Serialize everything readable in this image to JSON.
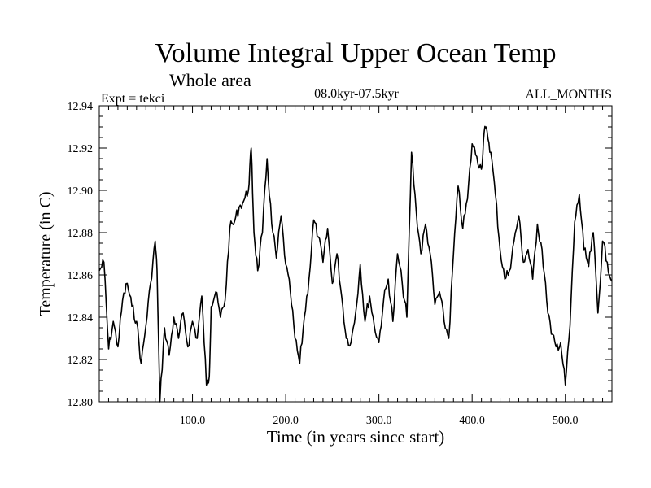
{
  "chart_data": {
    "type": "line",
    "title": "Volume Integral Upper Ocean Temp",
    "subtitle": "Whole area",
    "experiment_label": "Expt = tekci",
    "period_label": "08.0kyr-07.5kyr",
    "months_label": "ALL_MONTHS",
    "xlabel": "Time (in years since start)",
    "ylabel": "Temperature (in C)",
    "xlim": [
      0,
      550
    ],
    "ylim": [
      12.8,
      12.94
    ],
    "x_ticks": [
      100,
      200,
      300,
      400,
      500
    ],
    "x_tick_labels": [
      "100.0",
      "200.0",
      "300.0",
      "400.0",
      "500.0"
    ],
    "y_ticks": [
      12.8,
      12.82,
      12.84,
      12.86,
      12.88,
      12.9,
      12.92,
      12.94
    ],
    "y_tick_labels": [
      "12.80",
      "12.82",
      "12.84",
      "12.86",
      "12.88",
      "12.90",
      "12.92",
      "12.94"
    ],
    "series": [
      {
        "name": "Temperature",
        "color": "#000000",
        "x": [
          0,
          5,
          10,
          15,
          20,
          25,
          30,
          35,
          40,
          45,
          50,
          55,
          60,
          62,
          65,
          70,
          75,
          80,
          85,
          90,
          95,
          100,
          105,
          110,
          115,
          118,
          120,
          125,
          130,
          135,
          140,
          145,
          150,
          155,
          160,
          163,
          166,
          170,
          175,
          180,
          185,
          190,
          195,
          200,
          205,
          210,
          215,
          220,
          225,
          230,
          235,
          240,
          245,
          250,
          255,
          260,
          265,
          270,
          275,
          280,
          285,
          290,
          295,
          300,
          305,
          310,
          315,
          320,
          325,
          330,
          335,
          340,
          345,
          350,
          355,
          360,
          365,
          370,
          375,
          380,
          385,
          390,
          395,
          400,
          405,
          410,
          413,
          416,
          420,
          425,
          430,
          435,
          440,
          445,
          450,
          455,
          460,
          465,
          470,
          475,
          480,
          485,
          490,
          495,
          500,
          505,
          510,
          515,
          520,
          525,
          530,
          535,
          540,
          545,
          550
        ],
        "values": [
          12.862,
          12.866,
          12.825,
          12.838,
          12.826,
          12.848,
          12.856,
          12.845,
          12.838,
          12.818,
          12.836,
          12.856,
          12.876,
          12.862,
          12.8,
          12.835,
          12.822,
          12.84,
          12.83,
          12.842,
          12.826,
          12.838,
          12.83,
          12.85,
          12.808,
          12.812,
          12.845,
          12.852,
          12.84,
          12.848,
          12.882,
          12.885,
          12.892,
          12.895,
          12.9,
          12.92,
          12.88,
          12.862,
          12.88,
          12.915,
          12.884,
          12.868,
          12.888,
          12.865,
          12.852,
          12.83,
          12.818,
          12.84,
          12.858,
          12.886,
          12.878,
          12.866,
          12.882,
          12.856,
          12.87,
          12.85,
          12.83,
          12.828,
          12.842,
          12.865,
          12.838,
          12.85,
          12.836,
          12.828,
          12.848,
          12.858,
          12.838,
          12.87,
          12.856,
          12.84,
          12.918,
          12.89,
          12.87,
          12.884,
          12.87,
          12.846,
          12.852,
          12.838,
          12.83,
          12.87,
          12.902,
          12.882,
          12.896,
          12.922,
          12.916,
          12.91,
          12.928,
          12.928,
          12.918,
          12.898,
          12.872,
          12.858,
          12.862,
          12.876,
          12.888,
          12.866,
          12.872,
          12.858,
          12.884,
          12.872,
          12.848,
          12.832,
          12.826,
          12.828,
          12.808,
          12.836,
          12.885,
          12.898,
          12.872,
          12.864,
          12.88,
          12.842,
          12.876,
          12.866,
          12.857
        ]
      }
    ]
  }
}
